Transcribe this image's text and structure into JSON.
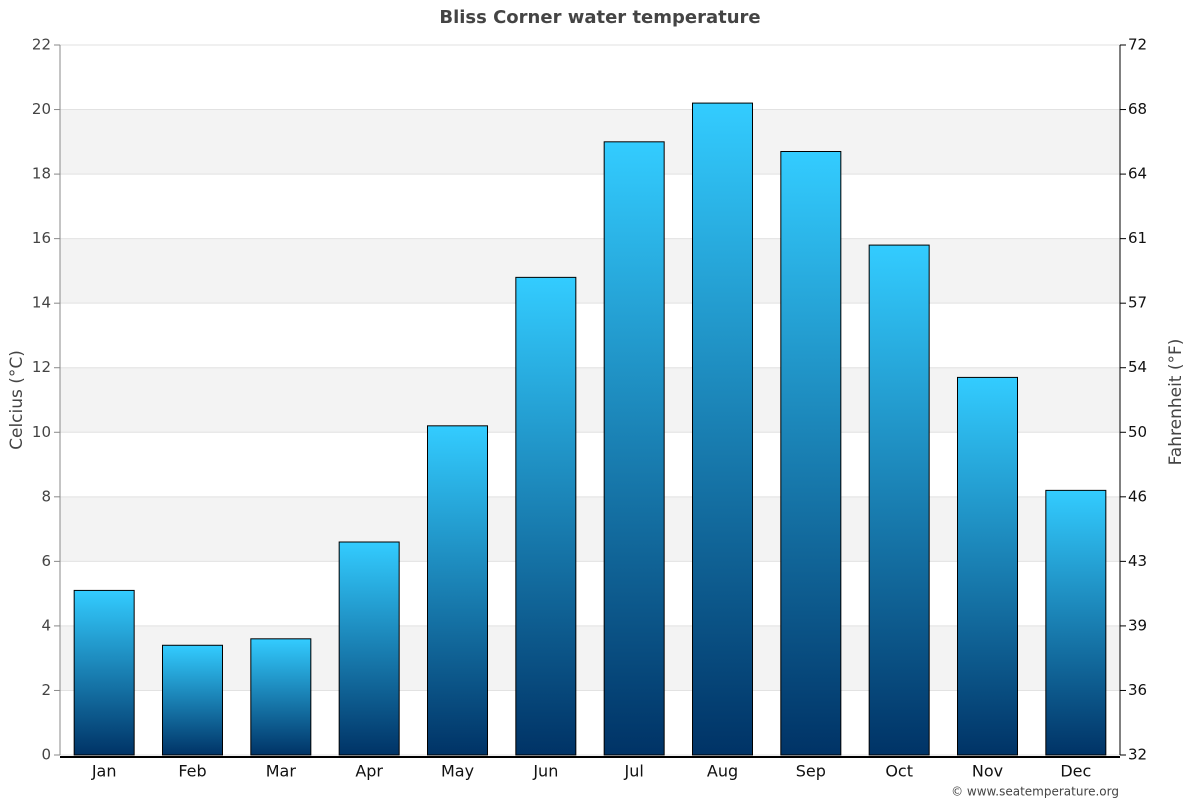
{
  "chart_data": {
    "type": "bar",
    "title": "Bliss Corner water temperature",
    "categories": [
      "Jan",
      "Feb",
      "Mar",
      "Apr",
      "May",
      "Jun",
      "Jul",
      "Aug",
      "Sep",
      "Oct",
      "Nov",
      "Dec"
    ],
    "values": [
      5.1,
      3.4,
      3.6,
      6.6,
      10.2,
      14.8,
      19.0,
      20.2,
      18.7,
      15.8,
      11.7,
      8.2
    ],
    "color": [
      "#33ccff",
      "#003366"
    ],
    "ylabel": "Celcius (°C)",
    "y2label": "Fahrenheit (°F)",
    "ylim": [
      0,
      22
    ],
    "yticks": [
      0,
      2,
      4,
      6,
      8,
      10,
      12,
      14,
      16,
      18,
      20,
      22
    ],
    "y2lim": [
      32,
      71.6
    ],
    "y2ticks": [
      32,
      {
        "value": 35.6,
        "label": "36"
      },
      {
        "value": 39.2,
        "label": "39"
      },
      {
        "value": 42.8,
        "label": "43"
      },
      {
        "value": 46.4,
        "label": "46"
      },
      50,
      {
        "value": 53.6,
        "label": "54"
      },
      {
        "value": 57.2,
        "label": "57"
      },
      {
        "value": 60.8,
        "label": "61"
      },
      {
        "value": 64.4,
        "label": "64"
      },
      68,
      {
        "value": 71.6,
        "label": "72"
      }
    ],
    "grid": true,
    "credit": "© www.seatemperature.org"
  }
}
